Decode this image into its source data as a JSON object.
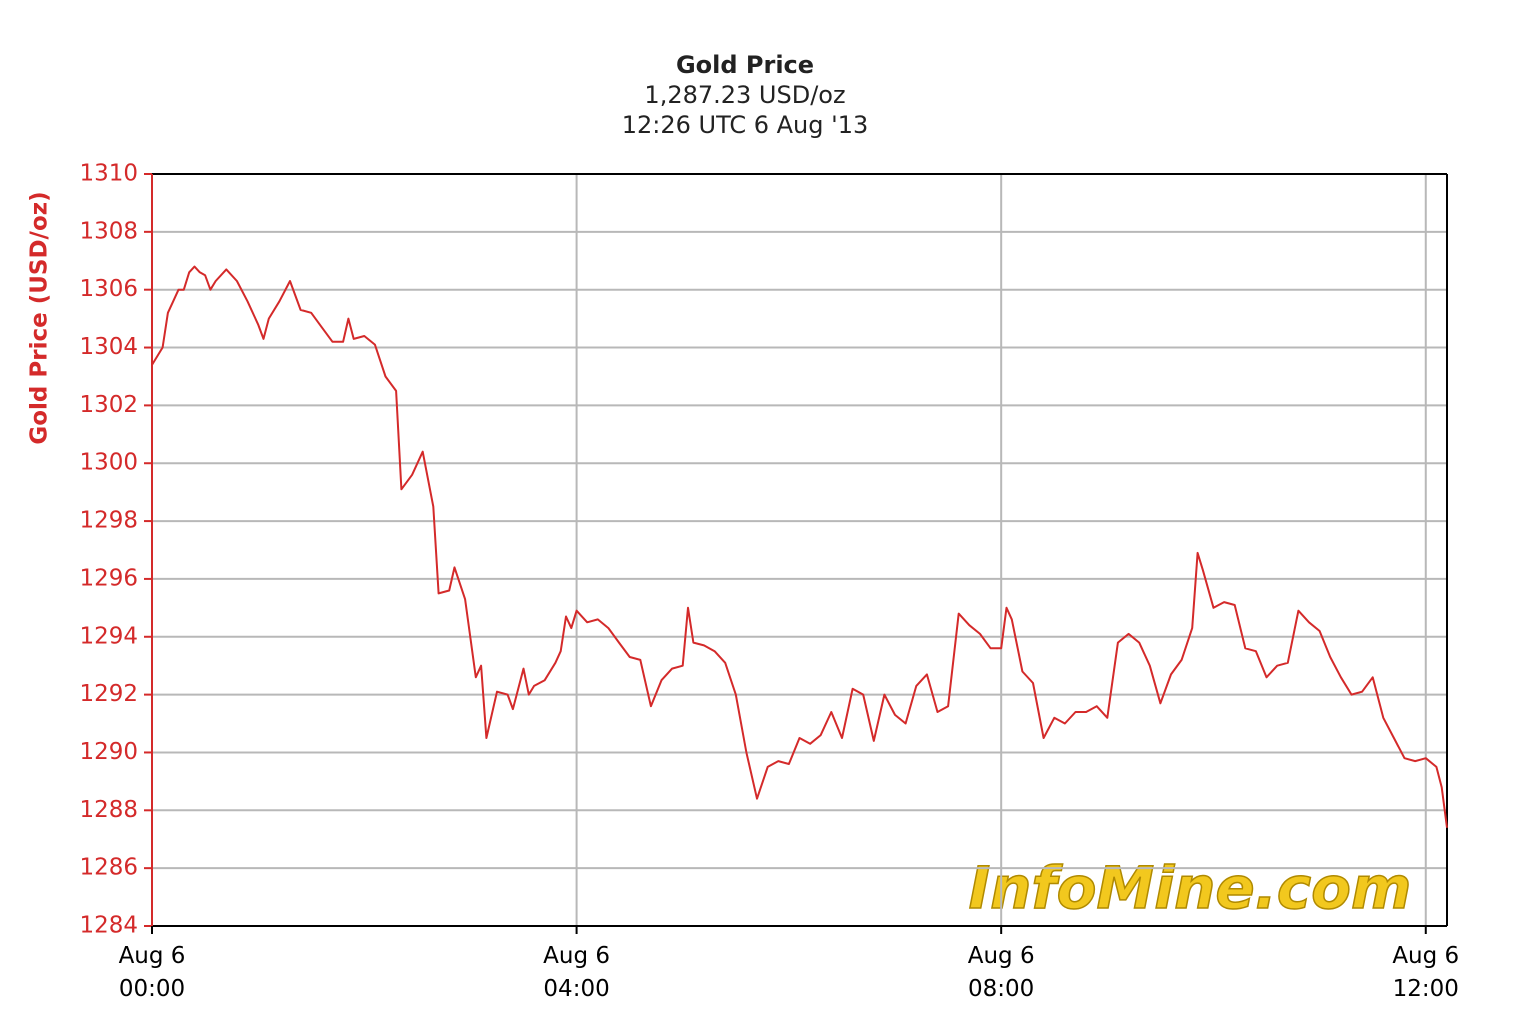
{
  "chart_data": {
    "type": "line",
    "title": "Gold Price",
    "subtitle": "1,287.23 USD/oz",
    "timestamp": "12:26 UTC 6 Aug '13",
    "y_label": "Gold Price (USD/oz)",
    "watermark": "InfoMine.com",
    "color": "#d42a2a",
    "grid": true,
    "xlim": [
      0,
      12.2
    ],
    "xticks": [
      {
        "value": 0,
        "label": "Aug 6\n00:00"
      },
      {
        "value": 4,
        "label": "Aug 6\n04:00"
      },
      {
        "value": 8,
        "label": "Aug 6\n08:00"
      },
      {
        "value": 12,
        "label": "Aug 6\n12:00"
      }
    ],
    "ylim": [
      1284,
      1310
    ],
    "yticks": [
      1284,
      1286,
      1288,
      1290,
      1292,
      1294,
      1296,
      1298,
      1300,
      1302,
      1304,
      1306,
      1308,
      1310
    ],
    "x": [
      0,
      0.1,
      0.15,
      0.2,
      0.25,
      0.3,
      0.35,
      0.4,
      0.45,
      0.5,
      0.55,
      0.6,
      0.7,
      0.8,
      0.9,
      1.0,
      1.05,
      1.1,
      1.2,
      1.3,
      1.4,
      1.5,
      1.6,
      1.7,
      1.8,
      1.85,
      1.9,
      2.0,
      2.1,
      2.2,
      2.3,
      2.35,
      2.45,
      2.55,
      2.65,
      2.7,
      2.8,
      2.85,
      2.95,
      3.05,
      3.1,
      3.15,
      3.25,
      3.35,
      3.4,
      3.5,
      3.55,
      3.6,
      3.7,
      3.8,
      3.85,
      3.9,
      3.95,
      4.0,
      4.1,
      4.2,
      4.3,
      4.4,
      4.5,
      4.6,
      4.7,
      4.8,
      4.9,
      5.0,
      5.05,
      5.1,
      5.2,
      5.3,
      5.4,
      5.5,
      5.6,
      5.7,
      5.8,
      5.9,
      6.0,
      6.1,
      6.2,
      6.3,
      6.4,
      6.5,
      6.6,
      6.7,
      6.8,
      6.9,
      7.0,
      7.1,
      7.2,
      7.3,
      7.4,
      7.5,
      7.6,
      7.7,
      7.8,
      7.9,
      8.0,
      8.05,
      8.1,
      8.2,
      8.3,
      8.4,
      8.5,
      8.6,
      8.7,
      8.8,
      8.9,
      9.0,
      9.1,
      9.2,
      9.3,
      9.4,
      9.5,
      9.6,
      9.7,
      9.8,
      9.85,
      9.9,
      10.0,
      10.1,
      10.2,
      10.3,
      10.4,
      10.5,
      10.6,
      10.7,
      10.8,
      10.9,
      11.0,
      11.1,
      11.2,
      11.3,
      11.4,
      11.5,
      11.6,
      11.7,
      11.8,
      11.9,
      12.0,
      12.1,
      12.15,
      12.2
    ],
    "values": [
      1303.4,
      1304.0,
      1305.2,
      1305.6,
      1306.0,
      1306.0,
      1306.6,
      1306.8,
      1306.6,
      1306.5,
      1306.0,
      1306.3,
      1306.7,
      1306.3,
      1305.6,
      1304.8,
      1304.3,
      1305.0,
      1305.6,
      1306.3,
      1305.3,
      1305.2,
      1304.7,
      1304.2,
      1304.2,
      1305.0,
      1304.3,
      1304.4,
      1304.1,
      1303.0,
      1302.5,
      1299.1,
      1299.6,
      1300.4,
      1298.5,
      1295.5,
      1295.6,
      1296.4,
      1295.3,
      1292.6,
      1293.0,
      1290.5,
      1292.1,
      1292.0,
      1291.5,
      1292.9,
      1292.0,
      1292.3,
      1292.5,
      1293.1,
      1293.5,
      1294.7,
      1294.3,
      1294.9,
      1294.5,
      1294.6,
      1294.3,
      1293.8,
      1293.3,
      1293.2,
      1291.6,
      1292.5,
      1292.9,
      1293.0,
      1295.0,
      1293.8,
      1293.7,
      1293.5,
      1293.1,
      1292.0,
      1290.0,
      1288.4,
      1289.5,
      1289.7,
      1289.6,
      1290.5,
      1290.3,
      1290.6,
      1291.4,
      1290.5,
      1292.2,
      1292.0,
      1290.4,
      1292.0,
      1291.3,
      1291.0,
      1292.3,
      1292.7,
      1291.4,
      1291.6,
      1294.8,
      1294.4,
      1294.1,
      1293.6,
      1293.6,
      1295.0,
      1294.6,
      1292.8,
      1292.4,
      1290.5,
      1291.2,
      1291.0,
      1291.4,
      1291.4,
      1291.6,
      1291.2,
      1293.8,
      1294.1,
      1293.8,
      1293.0,
      1291.7,
      1292.7,
      1293.2,
      1294.3,
      1296.9,
      1296.3,
      1295.0,
      1295.2,
      1295.1,
      1293.6,
      1293.5,
      1292.6,
      1293.0,
      1293.1,
      1294.9,
      1294.5,
      1294.2,
      1293.3,
      1292.6,
      1292.0,
      1292.1,
      1292.6,
      1291.2,
      1290.5,
      1289.8,
      1289.7,
      1289.8,
      1289.5,
      1288.8,
      1287.4
    ]
  }
}
